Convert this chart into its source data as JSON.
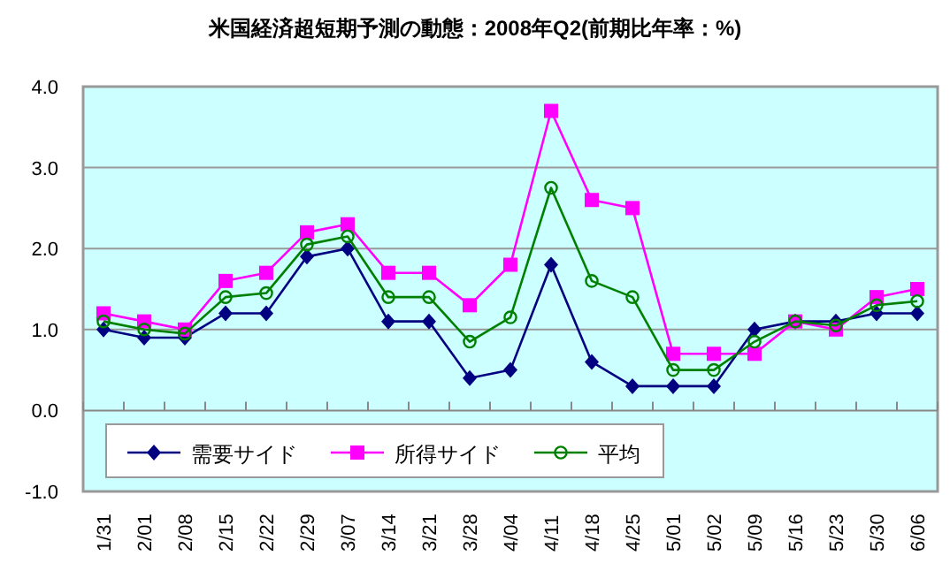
{
  "chart_data": {
    "type": "line",
    "title": "米国経済超短期予測の動態：2008年Q2(前期比年率：%)",
    "categories": [
      "1/31",
      "2/01",
      "2/08",
      "2/15",
      "2/22",
      "2/29",
      "3/07",
      "3/14",
      "3/21",
      "3/28",
      "4/04",
      "4/11",
      "4/18",
      "4/25",
      "5/01",
      "5/02",
      "5/09",
      "5/16",
      "5/23",
      "5/30",
      "6/06"
    ],
    "series": [
      {
        "name": "需要サイド",
        "color": "#000080",
        "marker": "diamond",
        "values": [
          1.0,
          0.9,
          0.9,
          1.2,
          1.2,
          1.9,
          2.0,
          1.1,
          1.1,
          0.4,
          0.5,
          1.8,
          0.6,
          0.3,
          0.3,
          0.3,
          1.0,
          1.1,
          1.1,
          1.2,
          1.2
        ]
      },
      {
        "name": "所得サイド",
        "color": "#ff00ff",
        "marker": "square",
        "values": [
          1.2,
          1.1,
          1.0,
          1.6,
          1.7,
          2.2,
          2.3,
          1.7,
          1.7,
          1.3,
          1.8,
          3.7,
          2.6,
          2.5,
          0.7,
          0.7,
          0.7,
          1.1,
          1.0,
          1.4,
          1.5
        ]
      },
      {
        "name": "平均",
        "color": "#008000",
        "marker": "circle",
        "values": [
          1.1,
          1.0,
          0.95,
          1.4,
          1.45,
          2.05,
          2.15,
          1.4,
          1.4,
          0.85,
          1.15,
          2.75,
          1.6,
          1.4,
          0.5,
          0.5,
          0.85,
          1.1,
          1.05,
          1.3,
          1.35
        ]
      }
    ],
    "ylim": [
      -1.0,
      4.0
    ],
    "yticks": [
      {
        "value": -1,
        "label": "-1.0"
      },
      {
        "value": 0,
        "label": "0.0"
      },
      {
        "value": 1,
        "label": "1.0"
      },
      {
        "value": 2,
        "label": "2.0"
      },
      {
        "value": 3,
        "label": "3.0"
      },
      {
        "value": 4,
        "label": "4.0"
      }
    ],
    "grid": "y",
    "legend": "bottom left"
  }
}
